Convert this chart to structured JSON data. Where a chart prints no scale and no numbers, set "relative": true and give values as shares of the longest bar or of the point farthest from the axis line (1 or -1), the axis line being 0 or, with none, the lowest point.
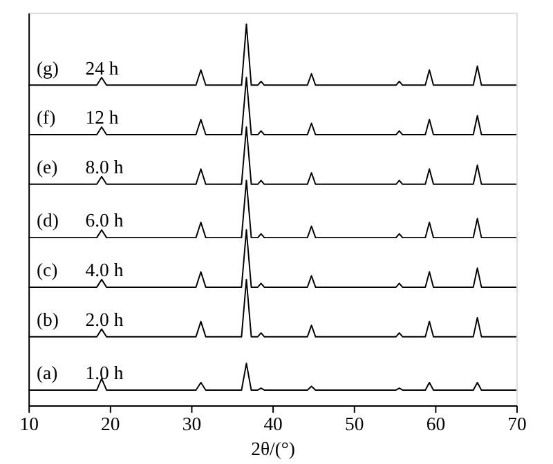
{
  "chart_data": {
    "type": "line",
    "relative": true,
    "xlabel": "2θ/(°)",
    "xlim": [
      10,
      70
    ],
    "xticks": [
      10,
      20,
      30,
      40,
      50,
      60,
      70
    ],
    "grid": false,
    "legend": false,
    "marker": "none",
    "line_style": "solid",
    "x": [
      10,
      18.4,
      19,
      19.6,
      30.6,
      31.2,
      31.8,
      36.2,
      36.8,
      37.4,
      38.2,
      38.6,
      39,
      44.3,
      44.8,
      45.3,
      55.2,
      55.6,
      56,
      58.8,
      59.3,
      59.8,
      64.7,
      65.2,
      65.7,
      70
    ],
    "series": [
      {
        "name": "(a)",
        "color": "#000000",
        "values": [
          0.04,
          0.04,
          0.07,
          0.04,
          0.04,
          0.06,
          0.04,
          0.04,
          0.11,
          0.04,
          0.04,
          0.045,
          0.04,
          0.04,
          0.05,
          0.04,
          0.04,
          0.045,
          0.04,
          0.04,
          0.06,
          0.04,
          0.04,
          0.06,
          0.04,
          0.04
        ]
      },
      {
        "name": "(b)",
        "color": "#000000",
        "values": [
          0.18,
          0.18,
          0.2,
          0.18,
          0.18,
          0.22,
          0.18,
          0.18,
          0.33,
          0.18,
          0.18,
          0.19,
          0.18,
          0.18,
          0.21,
          0.18,
          0.18,
          0.19,
          0.18,
          0.18,
          0.22,
          0.18,
          0.18,
          0.23,
          0.18,
          0.18
        ]
      },
      {
        "name": "(c)",
        "color": "#000000",
        "values": [
          0.31,
          0.31,
          0.33,
          0.31,
          0.31,
          0.35,
          0.31,
          0.31,
          0.46,
          0.31,
          0.31,
          0.32,
          0.31,
          0.31,
          0.34,
          0.31,
          0.31,
          0.32,
          0.31,
          0.31,
          0.35,
          0.31,
          0.31,
          0.36,
          0.31,
          0.31
        ]
      },
      {
        "name": "(d)",
        "color": "#000000",
        "values": [
          0.44,
          0.44,
          0.46,
          0.44,
          0.44,
          0.48,
          0.44,
          0.44,
          0.59,
          0.44,
          0.44,
          0.45,
          0.44,
          0.44,
          0.47,
          0.44,
          0.44,
          0.45,
          0.44,
          0.44,
          0.48,
          0.44,
          0.44,
          0.49,
          0.44,
          0.44
        ]
      },
      {
        "name": "(e)",
        "color": "#000000",
        "values": [
          0.58,
          0.58,
          0.6,
          0.58,
          0.58,
          0.62,
          0.58,
          0.58,
          0.73,
          0.58,
          0.58,
          0.59,
          0.58,
          0.58,
          0.61,
          0.58,
          0.58,
          0.59,
          0.58,
          0.58,
          0.62,
          0.58,
          0.58,
          0.63,
          0.58,
          0.58
        ]
      },
      {
        "name": "(f)",
        "color": "#000000",
        "values": [
          0.71,
          0.71,
          0.73,
          0.71,
          0.71,
          0.75,
          0.71,
          0.71,
          0.86,
          0.71,
          0.71,
          0.72,
          0.71,
          0.71,
          0.74,
          0.71,
          0.71,
          0.72,
          0.71,
          0.71,
          0.75,
          0.71,
          0.71,
          0.76,
          0.71,
          0.71
        ]
      },
      {
        "name": "(g)",
        "color": "#000000",
        "values": [
          0.84,
          0.84,
          0.86,
          0.84,
          0.84,
          0.88,
          0.84,
          0.84,
          1.0,
          0.84,
          0.84,
          0.85,
          0.84,
          0.84,
          0.87,
          0.84,
          0.84,
          0.85,
          0.84,
          0.84,
          0.88,
          0.84,
          0.84,
          0.89,
          0.84,
          0.84
        ]
      }
    ],
    "annotations": [
      "1.0 h",
      "2.0 h",
      "4.0 h",
      "6.0 h",
      "8.0 h",
      "12 h",
      "24 h"
    ]
  }
}
